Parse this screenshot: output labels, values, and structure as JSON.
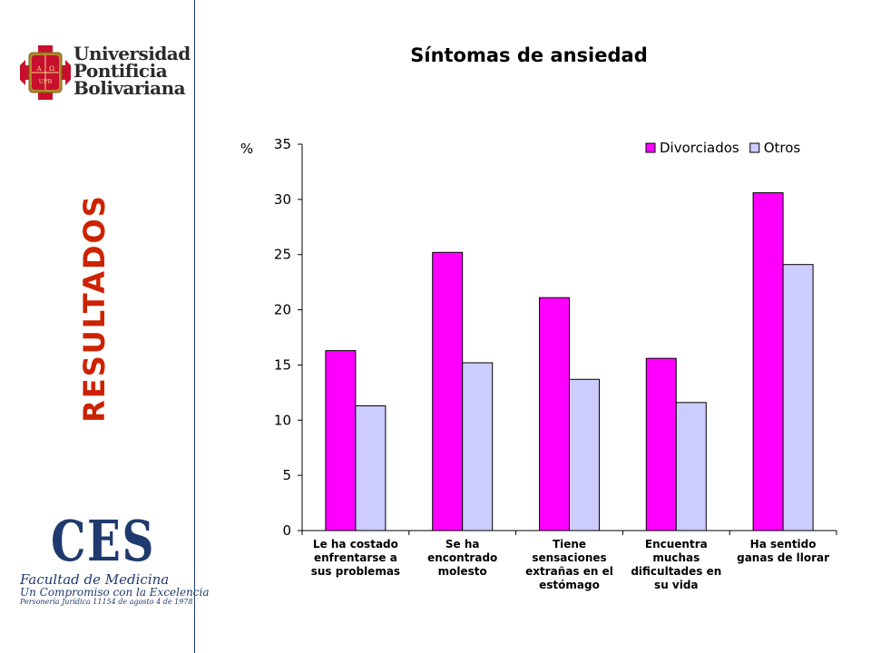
{
  "sidebar": {
    "university_logo_lines": [
      "Universidad",
      "Pontificia",
      "Bolivariana"
    ],
    "crest_letters": [
      "A",
      "Ω",
      "UPB"
    ],
    "section_label": "RESULTADOS",
    "ces_logo": {
      "letters": "CES",
      "faculty": "Facultad de Medicina",
      "motto": "Un Compromiso con la Excelencia",
      "legal": "Personería Jurídica 11154 de agosto 4 de 1978"
    }
  },
  "colors": {
    "divorciados": "#ff00ff",
    "otros": "#ccccff",
    "section_label": "#cc2200",
    "brand_blue": "#1f3a6e"
  },
  "chart_data": {
    "type": "bar",
    "title": "Síntomas de ansiedad",
    "ylabel": "%",
    "xlabel": "",
    "ylim": [
      0,
      35
    ],
    "yticks": [
      0,
      5,
      10,
      15,
      20,
      25,
      30,
      35
    ],
    "grid": false,
    "legend_position": "top-right",
    "categories": [
      [
        "Le ha costado",
        "enfrentarse a",
        "sus problemas"
      ],
      [
        "Se ha",
        "encontrado",
        "molesto"
      ],
      [
        "Tiene",
        "sensaciones",
        "extrañas en el",
        "estómago"
      ],
      [
        "Encuentra",
        "muchas",
        "dificultades en",
        "su vida"
      ],
      [
        "Ha sentido",
        "ganas de llorar"
      ]
    ],
    "series": [
      {
        "name": "Divorciados",
        "values": [
          16.3,
          25.2,
          21.1,
          15.6,
          30.6
        ]
      },
      {
        "name": "Otros",
        "values": [
          11.3,
          15.2,
          13.7,
          11.6,
          24.1
        ]
      }
    ]
  }
}
